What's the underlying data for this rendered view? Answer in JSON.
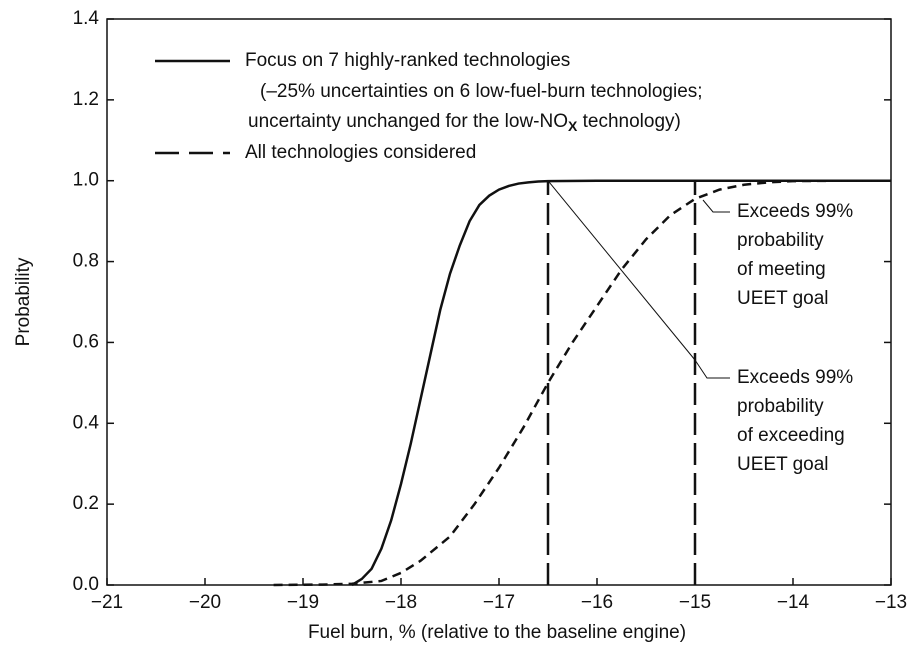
{
  "chart_data": {
    "type": "line",
    "xlabel": "Fuel burn, % (relative to the baseline engine)",
    "ylabel": "Probability",
    "xlim": [
      -21,
      -13
    ],
    "ylim": [
      0,
      1.4
    ],
    "xticks": [
      {
        "value": -21,
        "label": "−21"
      },
      {
        "value": -20,
        "label": "−20"
      },
      {
        "value": -19,
        "label": "−19"
      },
      {
        "value": -18,
        "label": "−18"
      },
      {
        "value": -17,
        "label": "−17"
      },
      {
        "value": -16,
        "label": "−16"
      },
      {
        "value": -15,
        "label": "−15"
      },
      {
        "value": -14,
        "label": "−14"
      },
      {
        "value": -13,
        "label": "−13"
      }
    ],
    "yticks": [
      {
        "value": 0,
        "label": "0.0"
      },
      {
        "value": 0.2,
        "label": "0.2"
      },
      {
        "value": 0.4,
        "label": "0.4"
      },
      {
        "value": 0.6,
        "label": "0.6"
      },
      {
        "value": 0.8,
        "label": "0.8"
      },
      {
        "value": 1,
        "label": "1.0"
      },
      {
        "value": 1.2,
        "label": "1.2"
      },
      {
        "value": 1.4,
        "label": "1.4"
      }
    ],
    "series": [
      {
        "name": "Focus on 7 highly-ranked technologies",
        "color": "#111111",
        "dash": "solid",
        "note": [
          "(–25% uncertainties on 6 low-fuel-burn technologies;",
          "uncertainty unchanged for the low-NO",
          "X",
          " technology)"
        ],
        "x": [
          -18.5,
          -18.4,
          -18.3,
          -18.2,
          -18.1,
          -18.0,
          -17.9,
          -17.8,
          -17.7,
          -17.6,
          -17.5,
          -17.4,
          -17.3,
          -17.2,
          -17.1,
          -17.0,
          -16.9,
          -16.8,
          -16.7,
          -16.6,
          -16.5,
          -16.0,
          -15.0,
          -14.0,
          -13.0
        ],
        "values": [
          0,
          0.015,
          0.04,
          0.09,
          0.16,
          0.25,
          0.35,
          0.46,
          0.57,
          0.68,
          0.77,
          0.84,
          0.9,
          0.94,
          0.963,
          0.978,
          0.987,
          0.993,
          0.996,
          0.998,
          0.999,
          1,
          1,
          1,
          1
        ]
      },
      {
        "name": "All technologies considered",
        "color": "#111111",
        "dash": "dashed",
        "x": [
          -19.3,
          -18.8,
          -18.5,
          -18.2,
          -18.0,
          -17.8,
          -17.5,
          -17.25,
          -17.0,
          -16.75,
          -16.5,
          -16.25,
          -16.0,
          -15.75,
          -15.5,
          -15.25,
          -15.0,
          -14.75,
          -14.5,
          -14.25,
          -14.0,
          -13.5,
          -13.0
        ],
        "values": [
          0,
          0.001,
          0.003,
          0.01,
          0.03,
          0.06,
          0.12,
          0.2,
          0.29,
          0.39,
          0.5,
          0.6,
          0.69,
          0.78,
          0.855,
          0.915,
          0.955,
          0.978,
          0.99,
          0.996,
          0.999,
          1,
          1
        ]
      }
    ],
    "vlines": [
      -16.5,
      -15
    ],
    "annotations": [
      {
        "lines": [
          "Exceeds 99%",
          "probability",
          "of meeting",
          "UEET goal"
        ]
      },
      {
        "lines": [
          "Exceeds 99%",
          "probability",
          "of exceeding",
          "UEET goal"
        ]
      }
    ]
  }
}
